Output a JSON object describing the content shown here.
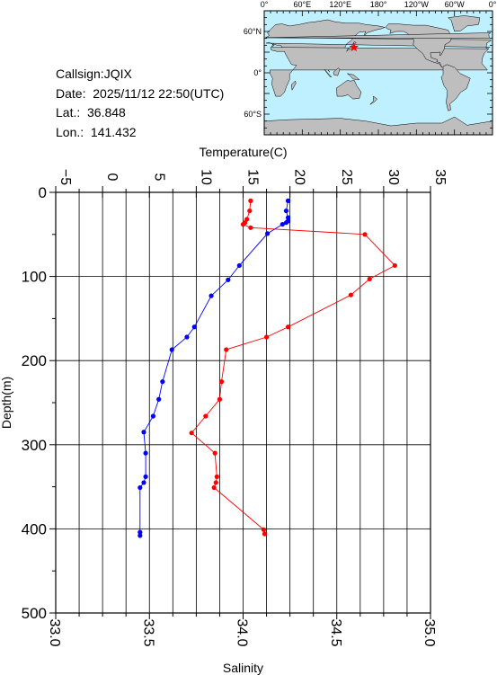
{
  "info": {
    "callsign": "Callsign:JQIX",
    "date": "Date:  2025/11/12 22:50(UTC)",
    "lat": "Lat.:  36.848",
    "lon": "Lon.:  141.432"
  },
  "map": {
    "top_labels": [
      "0°",
      "60°E",
      "120°E",
      "180°",
      "120°W",
      "60°W",
      "0°"
    ],
    "side_labels": [
      "60°N",
      "0°",
      "60°S"
    ],
    "ocean_color": "#bff0ff",
    "land_color": "#bebebe",
    "station_marker_color": "#ff0000",
    "station": {
      "lat": 36.848,
      "lon": 141.432
    }
  },
  "chart_data": {
    "type": "line",
    "title": "",
    "ylabel": "Depth(m)",
    "ylim": [
      500,
      0
    ],
    "yticks": [
      "0",
      "100",
      "200",
      "300",
      "400",
      "500"
    ],
    "xlabel_top": "Temperature(C)",
    "xlim_top": [
      -5,
      35
    ],
    "xticks_top": [
      "−5",
      "0",
      "5",
      "10",
      "15",
      "20",
      "25",
      "30",
      "35"
    ],
    "xlabel_bottom": "Salinity",
    "xlim_bottom": [
      33.0,
      35.0
    ],
    "xticks_bottom": [
      "33.0",
      "33.5",
      "34.0",
      "34.5",
      "35.0"
    ],
    "grid": true,
    "series": [
      {
        "axis": "temperature",
        "color": "#ff0000",
        "points": [
          [
            15.8,
            10
          ],
          [
            15.7,
            22
          ],
          [
            15.4,
            32
          ],
          [
            15.2,
            36
          ],
          [
            15.0,
            38
          ],
          [
            15.8,
            42
          ],
          [
            28.0,
            50
          ],
          [
            31.2,
            87
          ],
          [
            28.5,
            103
          ],
          [
            26.5,
            122
          ],
          [
            19.8,
            160
          ],
          [
            17.5,
            172
          ],
          [
            13.2,
            187
          ],
          [
            12.7,
            225
          ],
          [
            12.5,
            246
          ],
          [
            11.0,
            266
          ],
          [
            9.5,
            286
          ],
          [
            12.0,
            310
          ],
          [
            12.2,
            338
          ],
          [
            12.1,
            345
          ],
          [
            11.9,
            351
          ],
          [
            17.2,
            401
          ],
          [
            17.3,
            406
          ]
        ]
      },
      {
        "axis": "salinity",
        "color": "#0000ff",
        "points": [
          [
            34.24,
            10
          ],
          [
            34.23,
            22
          ],
          [
            34.24,
            30
          ],
          [
            34.24,
            34
          ],
          [
            34.23,
            36
          ],
          [
            34.21,
            38
          ],
          [
            34.13,
            49
          ],
          [
            33.98,
            87
          ],
          [
            33.92,
            104
          ],
          [
            33.83,
            123
          ],
          [
            33.74,
            160
          ],
          [
            33.7,
            172
          ],
          [
            33.62,
            187
          ],
          [
            33.57,
            225
          ],
          [
            33.55,
            246
          ],
          [
            33.52,
            266
          ],
          [
            33.47,
            285
          ],
          [
            33.48,
            310
          ],
          [
            33.48,
            338
          ],
          [
            33.47,
            345
          ],
          [
            33.45,
            351
          ],
          [
            33.45,
            404
          ],
          [
            33.45,
            408
          ]
        ]
      }
    ]
  }
}
